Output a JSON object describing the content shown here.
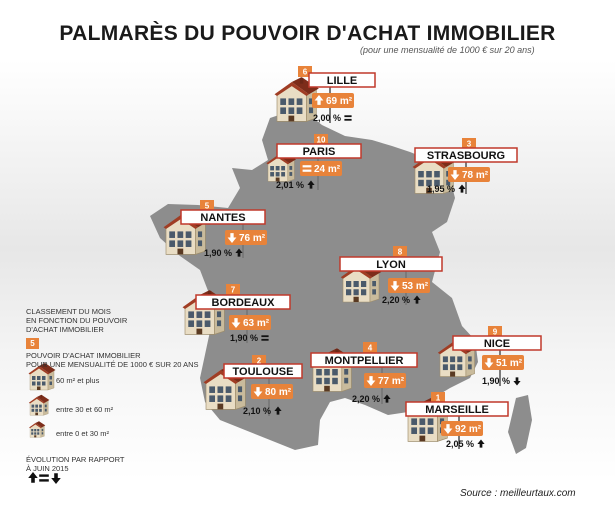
{
  "title": "PALMARÈS DU POUVOIR D'ACHAT IMMOBILIER",
  "subtitle": "(pour une mensualité de 1000 € sur 20 ans)",
  "colors": {
    "accent": "#e8833a",
    "sign_border": "#c0392b",
    "map": "#8a8a8a",
    "house_wall": "#e9ddc4",
    "house_roof": "#a03d24"
  },
  "legend": {
    "ranking": "CLASSEMENT DU MOIS\nEN FONCTION DU POUVOIR\nD'ACHAT IMMOBILIER",
    "rank_sample": "5",
    "purchasing_power": "POUVOIR D'ACHAT IMMOBILIER\nPOUR UNE MENSUALITÉ DE 1000 € SUR 20 ANS",
    "size_large": "60 m² et plus",
    "size_medium": "entre 30 et 60 m²",
    "size_small": "entre 0 et 30 m²",
    "evolution": "ÉVOLUTION PAR RAPPORT\nÀ JUIN 2015"
  },
  "source": "Source : meilleurtaux.com",
  "cities": [
    {
      "rank": "6",
      "name": "LILLE",
      "surface": "69 m²",
      "trend": "up",
      "rate": "2,00 %",
      "rate_trend": "equal",
      "size": "large"
    },
    {
      "rank": "10",
      "name": "PARIS",
      "surface": "24 m²",
      "trend": "equal",
      "rate": "2,01 %",
      "rate_trend": "up",
      "size": "small"
    },
    {
      "rank": "3",
      "name": "STRASBOURG",
      "surface": "78 m²",
      "trend": "down",
      "rate": "1,95 %",
      "rate_trend": "up",
      "size": "large"
    },
    {
      "rank": "5",
      "name": "NANTES",
      "surface": "76 m²",
      "trend": "down",
      "rate": "1,90 %",
      "rate_trend": "up",
      "size": "large"
    },
    {
      "rank": "8",
      "name": "LYON",
      "surface": "53 m²",
      "trend": "down",
      "rate": "2,20 %",
      "rate_trend": "up",
      "size": "medium"
    },
    {
      "rank": "7",
      "name": "BORDEAUX",
      "surface": "63 m²",
      "trend": "down",
      "rate": "1,90 %",
      "rate_trend": "equal",
      "size": "large"
    },
    {
      "rank": "9",
      "name": "NICE",
      "surface": "51 m²",
      "trend": "down",
      "rate": "1,90 %",
      "rate_trend": "down",
      "size": "medium"
    },
    {
      "rank": "2",
      "name": "TOULOUSE",
      "surface": "80 m²",
      "trend": "down",
      "rate": "2,10 %",
      "rate_trend": "up",
      "size": "large"
    },
    {
      "rank": "4",
      "name": "MONTPELLIER",
      "surface": "77 m²",
      "trend": "down",
      "rate": "2,20 %",
      "rate_trend": "up",
      "size": "large"
    },
    {
      "rank": "1",
      "name": "MARSEILLE",
      "surface": "92 m²",
      "trend": "down",
      "rate": "2,05 %",
      "rate_trend": "up",
      "size": "large"
    }
  ]
}
